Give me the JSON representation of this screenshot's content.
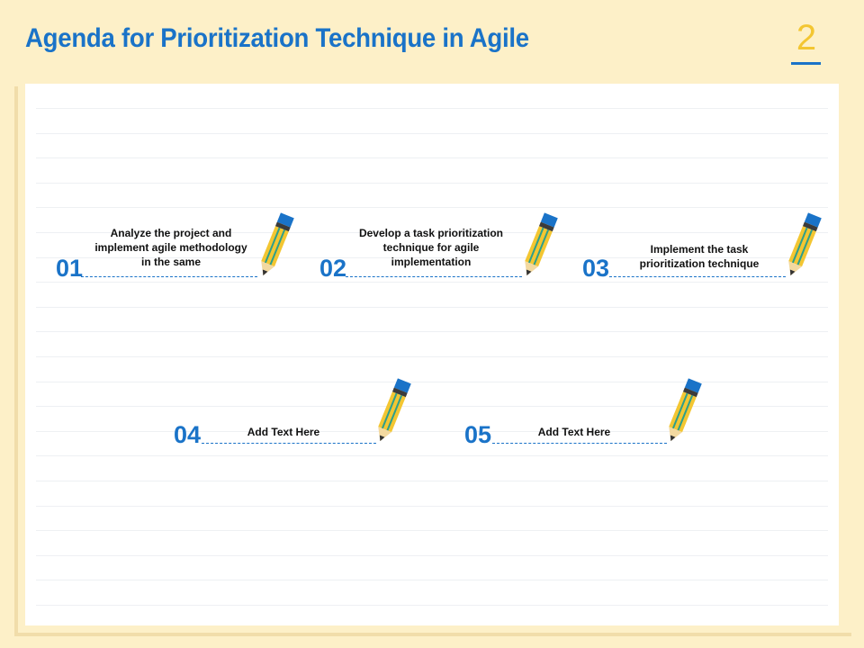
{
  "header": {
    "title": "Agenda for Prioritization Technique in Agile",
    "page_number": "2"
  },
  "colors": {
    "accent_blue": "#1a73c8",
    "accent_yellow": "#f3c632",
    "background": "#fdf0c8"
  },
  "agenda": {
    "items": [
      {
        "number": "01",
        "text": "Analyze the project and implement agile methodology in the same"
      },
      {
        "number": "02",
        "text": "Develop a task prioritization technique for agile implementation"
      },
      {
        "number": "03",
        "text": "Implement the task prioritization technique"
      },
      {
        "number": "04",
        "text": "Add Text Here"
      },
      {
        "number": "05",
        "text": "Add Text Here"
      }
    ],
    "icon": "pencil-icon"
  }
}
